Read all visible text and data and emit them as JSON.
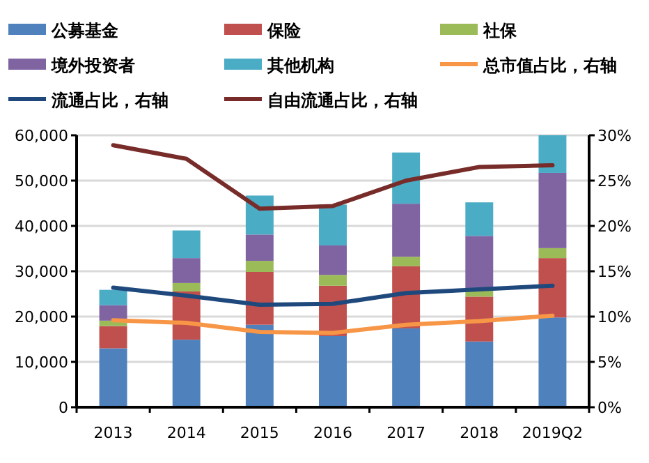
{
  "chart_data": {
    "type": "bar",
    "stacked": true,
    "categories": [
      "2013",
      "2014",
      "2015",
      "2016",
      "2017",
      "2018",
      "2019Q2"
    ],
    "series": [
      {
        "name": "公募基金",
        "color": "#4f81bd",
        "values": [
          13000,
          14900,
          18200,
          15700,
          17400,
          14500,
          19800
        ]
      },
      {
        "name": "保险",
        "color": "#c0504d",
        "values": [
          4900,
          10650,
          11650,
          11100,
          13700,
          9900,
          13100
        ]
      },
      {
        "name": "社保",
        "color": "#9bbb59",
        "values": [
          1200,
          1850,
          2450,
          2400,
          2100,
          1800,
          2200
        ]
      },
      {
        "name": "境外投资者",
        "color": "#8064a2",
        "values": [
          3400,
          5500,
          5800,
          6500,
          11700,
          11600,
          16600
        ]
      },
      {
        "name": "其他机构",
        "color": "#4bacc6",
        "values": [
          3400,
          6100,
          8600,
          9000,
          11300,
          7400,
          8300
        ]
      },
      {
        "name": "总市值占比，右轴",
        "color": "#f79646",
        "type": "line",
        "axis": "y2",
        "values": [
          9.6,
          9.3,
          8.3,
          8.2,
          9.1,
          9.5,
          10.1
        ]
      },
      {
        "name": "流通占比，右轴",
        "color": "#1f497d",
        "type": "line",
        "axis": "y2",
        "values": [
          13.2,
          12.3,
          11.3,
          11.4,
          12.6,
          13.0,
          13.4
        ]
      },
      {
        "name": "自由流通占比，右轴",
        "color": "#772c2a",
        "type": "line",
        "axis": "y2",
        "values": [
          28.9,
          27.4,
          21.9,
          22.2,
          25.0,
          26.5,
          26.7
        ]
      }
    ],
    "ylim": [
      0,
      60000
    ],
    "yticks": [
      {
        "value": 0,
        "label": "0"
      },
      {
        "value": 10000,
        "label": "10,000"
      },
      {
        "value": 20000,
        "label": "20,000"
      },
      {
        "value": 30000,
        "label": "30,000"
      },
      {
        "value": 40000,
        "label": "40,000"
      },
      {
        "value": 50000,
        "label": "50,000"
      },
      {
        "value": 60000,
        "label": "60,000"
      }
    ],
    "y2lim": [
      0,
      30
    ],
    "y2ticks": [
      {
        "value": 0,
        "label": "0%"
      },
      {
        "value": 5,
        "label": "5%"
      },
      {
        "value": 10,
        "label": "10%"
      },
      {
        "value": 15,
        "label": "15%"
      },
      {
        "value": 20,
        "label": "20%"
      },
      {
        "value": 25,
        "label": "25%"
      },
      {
        "value": 30,
        "label": "30%"
      }
    ],
    "grid": "y",
    "legend": "top"
  }
}
